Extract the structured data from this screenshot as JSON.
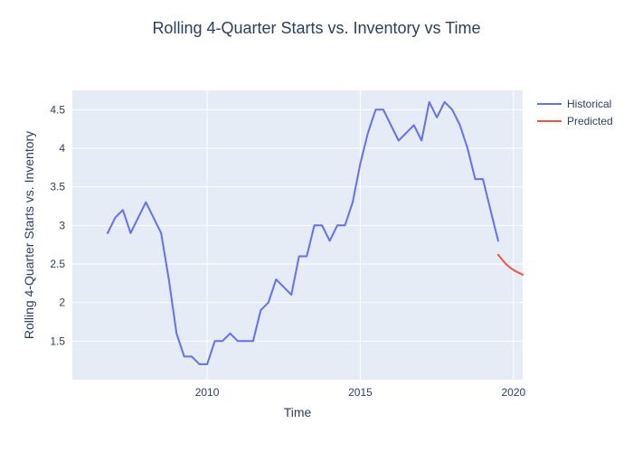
{
  "chart_data": {
    "type": "line",
    "title": "Rolling 4-Quarter Starts vs. Inventory vs Time",
    "xlabel": "Time",
    "ylabel": "Rolling 4-Quarter Starts vs. Inventory",
    "xlim": [
      2005.6,
      2020.3
    ],
    "ylim": [
      1.0,
      4.75
    ],
    "x_ticks": [
      2010,
      2015,
      2020
    ],
    "y_ticks": [
      1.5,
      2,
      2.5,
      3,
      3.5,
      4,
      4.5
    ],
    "grid": true,
    "legend_position": "top-right",
    "series": [
      {
        "name": "Historical",
        "color": "#636efa",
        "x": [
          2006.75,
          2007.0,
          2007.25,
          2007.5,
          2007.75,
          2008.0,
          2008.25,
          2008.5,
          2008.75,
          2009.0,
          2009.25,
          2009.5,
          2009.75,
          2010.0,
          2010.25,
          2010.5,
          2010.75,
          2011.0,
          2011.25,
          2011.5,
          2011.75,
          2012.0,
          2012.25,
          2012.5,
          2012.75,
          2013.0,
          2013.25,
          2013.5,
          2013.75,
          2014.0,
          2014.25,
          2014.5,
          2014.75,
          2015.0,
          2015.25,
          2015.5,
          2015.75,
          2016.0,
          2016.25,
          2016.5,
          2016.75,
          2017.0,
          2017.25,
          2017.5,
          2017.75,
          2018.0,
          2018.25,
          2018.5,
          2018.75,
          2019.0,
          2019.25,
          2019.5
        ],
        "y": [
          2.9,
          3.1,
          3.2,
          2.9,
          3.1,
          3.3,
          3.1,
          2.9,
          2.3,
          1.6,
          1.3,
          1.3,
          1.2,
          1.2,
          1.5,
          1.5,
          1.6,
          1.5,
          1.5,
          1.5,
          1.9,
          2.0,
          2.3,
          2.2,
          2.1,
          2.6,
          2.6,
          3.0,
          3.0,
          2.8,
          3.0,
          3.0,
          3.3,
          3.8,
          4.2,
          4.5,
          4.5,
          4.3,
          4.1,
          4.2,
          4.3,
          4.1,
          4.6,
          4.4,
          4.6,
          4.5,
          4.3,
          4.0,
          3.6,
          3.6,
          3.2,
          2.8
        ]
      },
      {
        "name": "Predicted",
        "color": "#ef553b",
        "x": [
          2019.5,
          2019.6,
          2019.75,
          2019.9,
          2020.05,
          2020.2,
          2020.3
        ],
        "y": [
          2.62,
          2.57,
          2.5,
          2.45,
          2.41,
          2.38,
          2.36
        ]
      }
    ]
  }
}
